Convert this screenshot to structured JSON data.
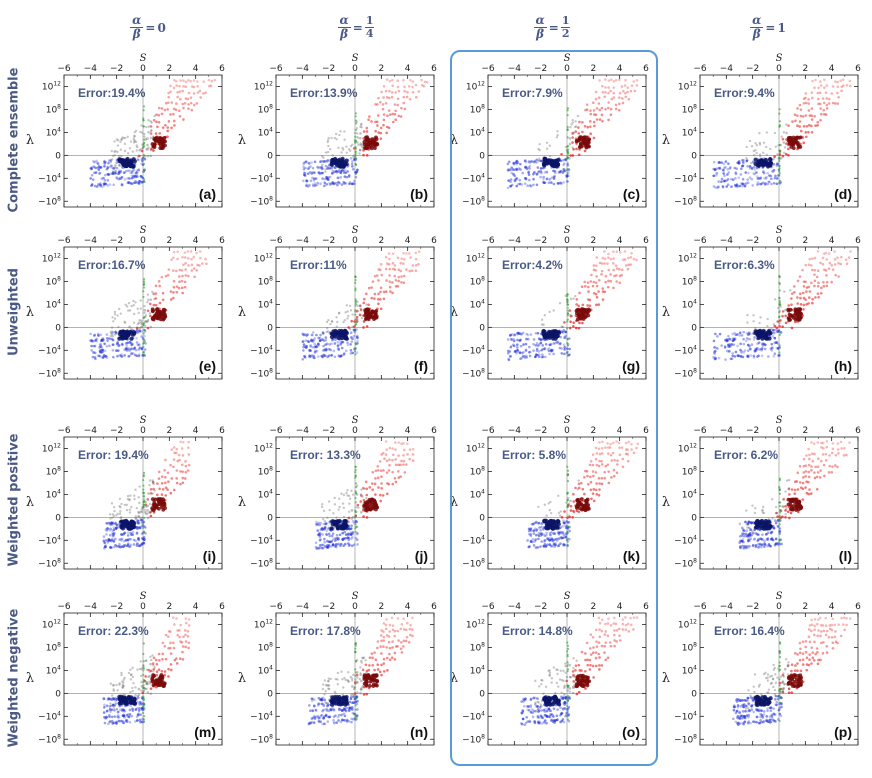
{
  "header": {
    "alpha_symbol": "α",
    "beta_symbol": "β",
    "equals": "=",
    "columns": [
      {
        "type": "int",
        "value": "0"
      },
      {
        "type": "frac",
        "num": "1",
        "den": "4"
      },
      {
        "type": "frac",
        "num": "1",
        "den": "2"
      },
      {
        "type": "int",
        "value": "1"
      }
    ]
  },
  "rows": [
    {
      "label": "Complete ensemble"
    },
    {
      "label": "Unweighted"
    },
    {
      "label": "Weighted positive"
    },
    {
      "label": "Weighted negative"
    }
  ],
  "axis_labels": {
    "x_top": "S",
    "y": "λ"
  },
  "x_ticks": [
    "−6",
    "−4",
    "−2",
    "0",
    "2",
    "4",
    "6"
  ],
  "x_tick_values": [
    -6,
    -4,
    -2,
    0,
    2,
    4,
    6
  ],
  "y_ticks": [
    {
      "base": "10",
      "exp": "12",
      "value": 12
    },
    {
      "base": "10",
      "exp": "8",
      "value": 8
    },
    {
      "base": "10",
      "exp": "4",
      "value": 4
    },
    {
      "base": "0",
      "exp": "",
      "value": 0
    },
    {
      "base": "−10",
      "exp": "4",
      "value": -4
    },
    {
      "base": "−10",
      "exp": "8",
      "value": -8
    }
  ],
  "colors": {
    "positive": "#e8201c",
    "positive_center": "#7a0b0b",
    "negative": "#1f2fd8",
    "negative_center": "#0c1466",
    "misclassified": "#707070",
    "boundary": "#2ea02e",
    "label": "#4a5a86",
    "highlight": "#5b9bd5"
  },
  "chart_data": {
    "type": "scatter",
    "layout": "grid 4x4",
    "xlabel": "S",
    "ylabel": "λ",
    "xlim": [
      -6,
      6
    ],
    "ylim_signed_log10": [
      -9,
      14
    ],
    "highlighted_column": 2,
    "panels": [
      {
        "id": "(a)",
        "row": 0,
        "col": 0,
        "error": "Error:19.4%",
        "red_xmax": 5.5,
        "blue_xmin": -4,
        "gray": 0.3,
        "mode": 0
      },
      {
        "id": "(b)",
        "row": 0,
        "col": 1,
        "error": "Error:13.9%",
        "red_xmax": 5.5,
        "blue_xmin": -4,
        "gray": 0.22,
        "mode": 1
      },
      {
        "id": "(c)",
        "row": 0,
        "col": 2,
        "error": "Error:7.9%",
        "red_xmax": 5.5,
        "blue_xmin": -4.5,
        "gray": 0.12,
        "mode": 2
      },
      {
        "id": "(d)",
        "row": 0,
        "col": 3,
        "error": "Error:9.4%",
        "red_xmax": 5.5,
        "blue_xmin": -5,
        "gray": 0.14,
        "mode": 3
      },
      {
        "id": "(e)",
        "row": 1,
        "col": 0,
        "error": "Error:16.7%",
        "red_xmax": 5,
        "blue_xmin": -4,
        "gray": 0.26,
        "mode": 0
      },
      {
        "id": "(f)",
        "row": 1,
        "col": 1,
        "error": "Error:11%",
        "red_xmax": 5,
        "blue_xmin": -4,
        "gray": 0.18,
        "mode": 1
      },
      {
        "id": "(g)",
        "row": 1,
        "col": 2,
        "error": "Error:4.2%",
        "red_xmax": 5.5,
        "blue_xmin": -4.5,
        "gray": 0.07,
        "mode": 2
      },
      {
        "id": "(h)",
        "row": 1,
        "col": 3,
        "error": "Error:6.3%",
        "red_xmax": 5.5,
        "blue_xmin": -5,
        "gray": 0.1,
        "mode": 3
      },
      {
        "id": "(i)",
        "row": 2,
        "col": 0,
        "error": "Error: 19.4%",
        "red_xmax": 3.5,
        "blue_xmin": -3,
        "gray": 0.3,
        "mode": 0
      },
      {
        "id": "(j)",
        "row": 2,
        "col": 1,
        "error": "Error: 13.3%",
        "red_xmax": 4.5,
        "blue_xmin": -3,
        "gray": 0.21,
        "mode": 1
      },
      {
        "id": "(k)",
        "row": 2,
        "col": 2,
        "error": "Error: 5.8%",
        "red_xmax": 5.5,
        "blue_xmin": -3,
        "gray": 0.09,
        "mode": 2
      },
      {
        "id": "(l)",
        "row": 2,
        "col": 3,
        "error": "Error: 6.2%",
        "red_xmax": 5.5,
        "blue_xmin": -3,
        "gray": 0.1,
        "mode": 3
      },
      {
        "id": "(m)",
        "row": 3,
        "col": 0,
        "error": "Error: 22.3%",
        "red_xmax": 3.5,
        "blue_xmin": -3,
        "gray": 0.34,
        "mode": 0
      },
      {
        "id": "(n)",
        "row": 3,
        "col": 1,
        "error": "Error: 17.8%",
        "red_xmax": 4.5,
        "blue_xmin": -3.5,
        "gray": 0.27,
        "mode": 1
      },
      {
        "id": "(o)",
        "row": 3,
        "col": 2,
        "error": "Error: 14.8%",
        "red_xmax": 5.5,
        "blue_xmin": -3.5,
        "gray": 0.23,
        "mode": 2
      },
      {
        "id": "(p)",
        "row": 3,
        "col": 3,
        "error": "Error: 16.4%",
        "red_xmax": 5.5,
        "blue_xmin": -3.5,
        "gray": 0.25,
        "mode": 3
      }
    ]
  }
}
